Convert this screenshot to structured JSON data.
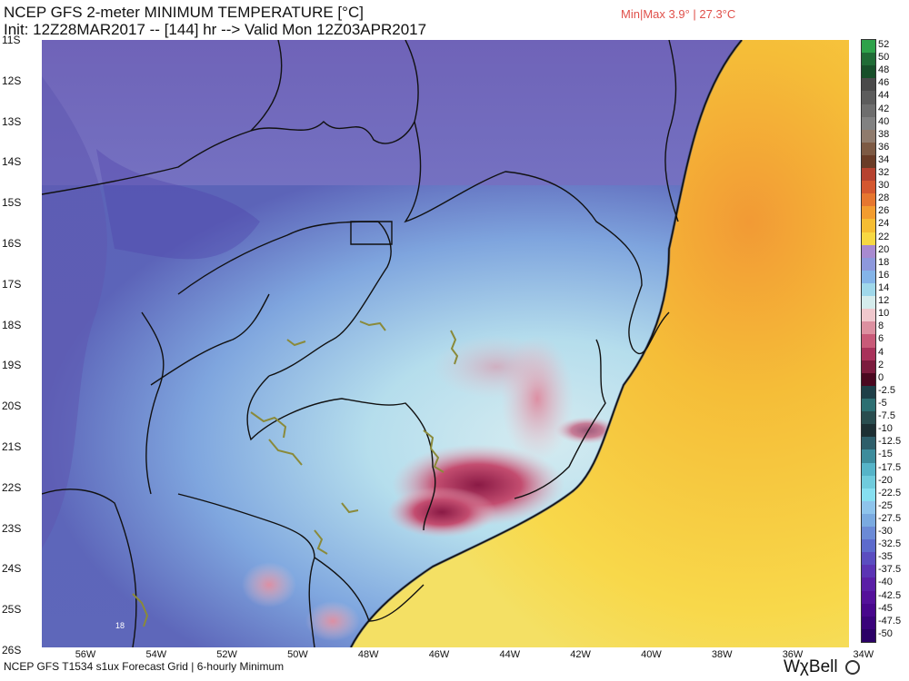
{
  "header": {
    "title": "NCEP GFS 2-meter MINIMUM TEMPERATURE [°C]",
    "init_line": "Init: 12Z28MAR2017 -- [144] hr --> Valid Mon 12Z03APR2017",
    "minmax": "Min|Max 3.9° | 27.3°C"
  },
  "footer": {
    "left": "NCEP GFS T1534 s1ux Forecast Grid | 6-hourly Minimum",
    "brand": "WχBell"
  },
  "map": {
    "lat_labels": [
      "11S",
      "12S",
      "13S",
      "14S",
      "15S",
      "16S",
      "17S",
      "18S",
      "19S",
      "20S",
      "21S",
      "22S",
      "23S",
      "24S",
      "25S",
      "26S"
    ],
    "lon_labels": [
      "56W",
      "54W",
      "52W",
      "50W",
      "48W",
      "46W",
      "44W",
      "42W",
      "40W",
      "38W",
      "36W",
      "34W"
    ],
    "point_label": "18"
  },
  "colorbar": {
    "labels": [
      "52",
      "50",
      "48",
      "46",
      "44",
      "42",
      "40",
      "38",
      "36",
      "34",
      "32",
      "30",
      "28",
      "26",
      "24",
      "22",
      "20",
      "18",
      "16",
      "14",
      "12",
      "10",
      "8",
      "6",
      "4",
      "2",
      "0",
      "-2.5",
      "-5",
      "-7.5",
      "-10",
      "-12.5",
      "-15",
      "-17.5",
      "-20",
      "-22.5",
      "-25",
      "-27.5",
      "-30",
      "-32.5",
      "-35",
      "-37.5",
      "-40",
      "-42.5",
      "-45",
      "-47.5",
      "-50"
    ],
    "colors": [
      "#2ea24a",
      "#206c36",
      "#184f2a",
      "#4a4a4a",
      "#5c5c5c",
      "#6e6e6e",
      "#818181",
      "#8f7b6d",
      "#7d5a44",
      "#6a3c27",
      "#b6422f",
      "#d4572f",
      "#e6762f",
      "#f29c2f",
      "#f5bd33",
      "#f7d843",
      "#a88ad0",
      "#8d98dc",
      "#84b4e8",
      "#9fd8ea",
      "#d5ecec",
      "#f0c8cd",
      "#dc90a0",
      "#c85a78",
      "#a8325a",
      "#7c1c3e",
      "#4a0820",
      "#1e3f48",
      "#2d6f72",
      "#2a4d4f",
      "#1d2f33",
      "#2e5e6a",
      "#3d8c9c",
      "#56b4c8",
      "#6fcbdc",
      "#86dff0",
      "#8ec4ec",
      "#7aaae0",
      "#6b8ad6",
      "#5d6bcc",
      "#5a4dc0",
      "#5b34b4",
      "#5a1fa6",
      "#54119a",
      "#48078c",
      "#3a037a",
      "#2b0166"
    ]
  }
}
